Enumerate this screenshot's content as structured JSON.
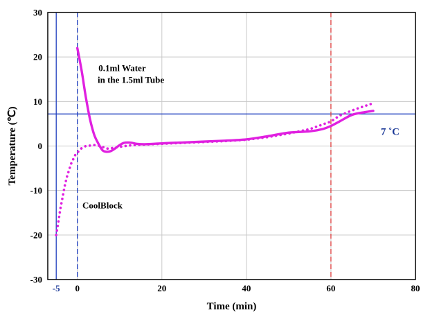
{
  "chart_data": {
    "type": "line",
    "xlabel": "Time (min)",
    "ylabel": "Temperature (℃)",
    "xlim": [
      -7,
      80
    ],
    "ylim": [
      -30,
      30
    ],
    "x_ticks": [
      0,
      20,
      40,
      60,
      80
    ],
    "y_ticks": [
      -30,
      -20,
      -10,
      0,
      10,
      20,
      30
    ],
    "extra_x_tick": {
      "value": -5,
      "label": "-5",
      "color": "#1f3c99"
    },
    "grid": true,
    "reference_lines": [
      {
        "orientation": "horizontal",
        "value": 7.2,
        "style": "solid",
        "color": "#1f3fbf",
        "label": "7 ˚C"
      },
      {
        "orientation": "vertical",
        "value": -5,
        "style": "solid",
        "color": "#1f3fbf"
      },
      {
        "orientation": "vertical",
        "value": 0,
        "style": "dashed",
        "color": "#1f3fbf"
      },
      {
        "orientation": "vertical",
        "value": 60,
        "style": "dashed",
        "color": "#e04040"
      }
    ],
    "annotations": [
      {
        "text": "0.1ml Water",
        "x": 5,
        "y": 16.8
      },
      {
        "text": "in the 1.5ml Tube",
        "x": 4.8,
        "y": 14.2
      },
      {
        "text": "CoolBlock",
        "x": 1.2,
        "y": -14
      }
    ],
    "series": [
      {
        "style": "solid",
        "color": "#e020e0",
        "x": [
          0,
          1,
          2,
          3,
          4,
          5,
          6,
          7,
          8,
          9,
          10,
          11,
          12,
          13,
          14,
          16,
          20,
          25,
          30,
          35,
          40,
          45,
          50,
          55,
          58,
          60,
          62,
          65,
          68,
          70
        ],
        "y": [
          22,
          17,
          11,
          6,
          2.5,
          0.5,
          -1,
          -1.3,
          -1.1,
          -0.5,
          0.2,
          0.7,
          0.8,
          0.7,
          0.5,
          0.4,
          0.6,
          0.8,
          1.0,
          1.2,
          1.5,
          2.2,
          3.0,
          3.3,
          3.8,
          4.5,
          5.5,
          7.0,
          7.6,
          7.9
        ]
      },
      {
        "style": "dotted",
        "color": "#e020e0",
        "x": [
          -5,
          -4.5,
          -4,
          -3.5,
          -3,
          -2.5,
          -2,
          -1.5,
          -1,
          -0.5,
          0,
          1,
          2,
          3,
          4,
          5,
          6,
          7,
          8,
          10,
          12,
          15,
          20,
          25,
          30,
          35,
          40,
          45,
          50,
          55,
          60,
          62,
          65,
          68,
          70
        ],
        "y": [
          -20,
          -17,
          -14,
          -11.5,
          -9,
          -7,
          -5.5,
          -4,
          -3,
          -2,
          -1.5,
          -0.5,
          0,
          0.1,
          0.2,
          0.1,
          -0.2,
          -0.6,
          -0.5,
          -0.2,
          0.1,
          0.3,
          0.5,
          0.7,
          0.9,
          1.1,
          1.4,
          2.0,
          2.8,
          3.8,
          5.5,
          6.8,
          8.0,
          9.0,
          9.6
        ]
      }
    ]
  }
}
